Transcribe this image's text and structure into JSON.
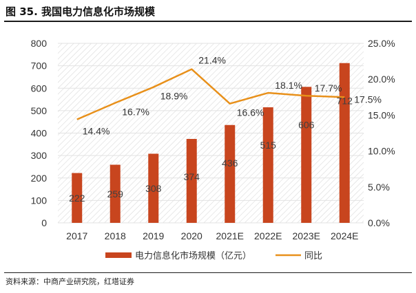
{
  "figure_title": "图 35. 我国电力信息化市场规模",
  "source_note": "资料来源：中商产业研究院，红塔证券",
  "colors": {
    "bar": "#C8451E",
    "line": "#E8901A",
    "grid_hatch": "#cfcfcf"
  },
  "chart_data": {
    "type": "bar",
    "categories": [
      "2017",
      "2018",
      "2019",
      "2020",
      "2021E",
      "2022E",
      "2023E",
      "2024E"
    ],
    "series": [
      {
        "name": "电力信息化市场规模（亿元）",
        "type": "bar",
        "axis": "left",
        "values": [
          222,
          259,
          308,
          374,
          436,
          515,
          606,
          712
        ]
      },
      {
        "name": "同比",
        "type": "line",
        "axis": "right",
        "values": [
          14.4,
          16.7,
          18.9,
          21.4,
          16.6,
          18.1,
          17.7,
          17.5
        ]
      }
    ],
    "value_labels": [
      "222",
      "259",
      "308",
      "374",
      "436",
      "515",
      "606",
      "712"
    ],
    "pct_labels": [
      "14.4%",
      "16.7%",
      "18.9%",
      "21.4%",
      "16.6%",
      "18.1%",
      "17.7%",
      "17.5%"
    ],
    "ylim_left": [
      0,
      800
    ],
    "yticks_left": [
      "0",
      "100",
      "200",
      "300",
      "400",
      "500",
      "600",
      "700",
      "800"
    ],
    "ylim_right": [
      0,
      25
    ],
    "yticks_right": [
      "0.0%",
      "5.0%",
      "10.0%",
      "15.0%",
      "20.0%",
      "25.0%"
    ],
    "legend_position": "bottom"
  }
}
